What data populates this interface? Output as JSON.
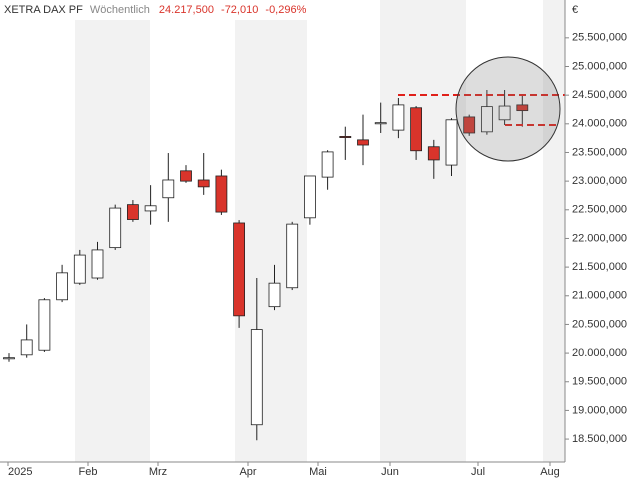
{
  "chart_data": {
    "type": "candlestick",
    "title": "XETRA DAX PF",
    "interval": "Wöchentlich",
    "last": "24.217,500",
    "change": "-72,010",
    "change_pct": "-0,296%",
    "currency": "€",
    "up_color": "#ffffff",
    "down_color": "#d9342b",
    "xtick_labels": [
      "2025",
      "Feb",
      "Mrz",
      "Apr",
      "Mai",
      "Jun",
      "Jul",
      "Aug"
    ],
    "ylim": [
      18100,
      26160
    ],
    "yticks": [
      {
        "value": 18500,
        "label": "18.500,000"
      },
      {
        "value": 19000,
        "label": "19.000,000"
      },
      {
        "value": 19500,
        "label": "19.500,000"
      },
      {
        "value": 20000,
        "label": "20.000,000"
      },
      {
        "value": 20500,
        "label": "20.500,000"
      },
      {
        "value": 21000,
        "label": "21.000,000"
      },
      {
        "value": 21500,
        "label": "21.500,000"
      },
      {
        "value": 22000,
        "label": "22.000,000"
      },
      {
        "value": 22500,
        "label": "22.500,000"
      },
      {
        "value": 23000,
        "label": "23.000,000"
      },
      {
        "value": 23500,
        "label": "23.500,000"
      },
      {
        "value": 24000,
        "label": "24.000,000"
      },
      {
        "value": 24500,
        "label": "24.500,000"
      },
      {
        "value": 25000,
        "label": "25.000,000"
      },
      {
        "value": 25500,
        "label": "25.500,000"
      }
    ],
    "open": [
      19900,
      19970,
      20050,
      20930,
      21220,
      21310,
      21840,
      22590,
      22480,
      22710,
      23180,
      23020,
      23090,
      22270,
      18750,
      20810,
      21140,
      22360,
      23070,
      23780,
      23720,
      24000,
      23890,
      24280,
      23600,
      23280,
      24120,
      23860,
      24070,
      24330
    ],
    "high": [
      20000,
      20500,
      20960,
      21540,
      21800,
      21940,
      22590,
      22670,
      22930,
      23490,
      23280,
      23490,
      23200,
      22320,
      21310,
      21540,
      22290,
      23090,
      23540,
      23950,
      24160,
      24370,
      24450,
      24310,
      23720,
      24100,
      24160,
      24590,
      24590,
      24510
    ],
    "low": [
      19850,
      19920,
      20020,
      20890,
      21190,
      21280,
      21800,
      22290,
      22240,
      22290,
      22970,
      22760,
      22410,
      20440,
      18480,
      20750,
      21100,
      22240,
      22850,
      23370,
      23280,
      23840,
      23750,
      23370,
      23040,
      23090,
      23790,
      23810,
      23980,
      23950
    ],
    "close": [
      19920,
      20230,
      20930,
      21400,
      21710,
      21800,
      22530,
      22330,
      22570,
      23020,
      23000,
      22900,
      22460,
      20650,
      20410,
      21220,
      22250,
      23090,
      23510,
      23760,
      23630,
      24020,
      24330,
      23530,
      23370,
      24070,
      23840,
      24300,
      24310,
      24230
    ]
  }
}
